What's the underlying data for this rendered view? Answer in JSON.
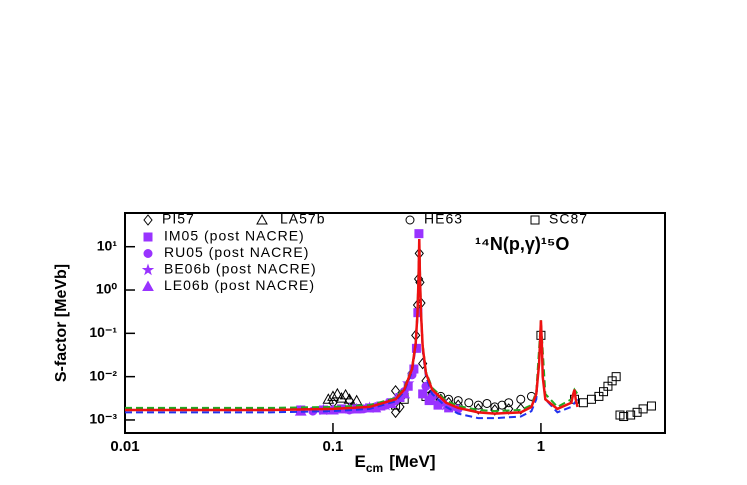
{
  "chart_data": {
    "type": "scatter",
    "annotation": "¹⁴N(p,γ)¹⁵O",
    "ylabel": "S-factor [MeVb]",
    "xlabel": "E",
    "xlabel_sub": "cm",
    "xlabel_unit": "[MeV]",
    "xscale": "log",
    "yscale": "log",
    "xlim": [
      0.01,
      3.95
    ],
    "ylim": [
      0.0005,
      60
    ],
    "xticks": [
      0.01,
      0.1,
      1
    ],
    "yticks": [
      {
        "value": 0.001,
        "label": "10⁻³"
      },
      {
        "value": 0.01,
        "label": "10⁻²"
      },
      {
        "value": 0.1,
        "label": "10⁻¹"
      },
      {
        "value": 1,
        "label": "10⁰"
      },
      {
        "value": 10,
        "label": "10¹"
      }
    ],
    "series": [
      {
        "name": "PI57",
        "marker": "diamond",
        "filled": false,
        "color": "#000000",
        "x": [
          0.1,
          0.12,
          0.2,
          0.2,
          0.21,
          0.22,
          0.24,
          0.25,
          0.255,
          0.258,
          0.26,
          0.262,
          0.265,
          0.27,
          0.28,
          0.3,
          0.33,
          0.36,
          0.4,
          0.5,
          0.6,
          0.7,
          0.8
        ],
        "values": [
          0.0025,
          0.0028,
          0.0015,
          0.0047,
          0.002,
          0.004,
          0.012,
          0.09,
          0.45,
          1.8,
          7,
          1.5,
          0.5,
          0.02,
          0.008,
          0.004,
          0.003,
          0.0025,
          0.0022,
          0.0018,
          0.0017,
          0.0018,
          0.0018
        ]
      },
      {
        "name": "LA57b",
        "marker": "triangle",
        "filled": false,
        "color": "#000000",
        "x": [
          0.095,
          0.1,
          0.105,
          0.11,
          0.115,
          0.12,
          0.13
        ],
        "values": [
          0.003,
          0.0035,
          0.004,
          0.0032,
          0.0038,
          0.003,
          0.0028
        ]
      },
      {
        "name": "HE63",
        "marker": "circle",
        "filled": false,
        "color": "#000000",
        "x": [
          0.3,
          0.33,
          0.36,
          0.4,
          0.45,
          0.5,
          0.55,
          0.6,
          0.65,
          0.7,
          0.8,
          0.9
        ],
        "values": [
          0.004,
          0.0035,
          0.003,
          0.0028,
          0.0025,
          0.0022,
          0.0024,
          0.002,
          0.0022,
          0.0025,
          0.003,
          0.0035
        ]
      },
      {
        "name": "SC87",
        "marker": "square",
        "filled": false,
        "color": "#000000",
        "x": [
          0.2,
          0.22,
          0.28,
          0.3,
          1.0,
          1.45,
          1.6,
          1.75,
          1.9,
          2.0,
          2.1,
          2.2,
          2.3,
          2.4,
          2.5,
          2.7,
          2.9,
          3.1,
          3.4
        ],
        "values": [
          0.0022,
          0.003,
          0.0035,
          0.003,
          0.09,
          0.003,
          0.0025,
          0.003,
          0.0035,
          0.0045,
          0.006,
          0.008,
          0.01,
          0.0013,
          0.0012,
          0.0013,
          0.0015,
          0.0018,
          0.0021
        ]
      },
      {
        "name": "IM05 (post NACRE)",
        "marker": "square",
        "filled": true,
        "color": "#9933ff",
        "x": [
          0.07,
          0.09,
          0.11,
          0.13,
          0.15,
          0.17,
          0.19,
          0.21,
          0.23,
          0.245,
          0.252,
          0.256,
          0.259,
          0.27,
          0.29,
          0.32,
          0.36
        ],
        "values": [
          0.0017,
          0.0017,
          0.0018,
          0.0018,
          0.0019,
          0.0021,
          0.0025,
          0.0033,
          0.006,
          0.015,
          0.045,
          0.3,
          20,
          0.004,
          0.0028,
          0.0022,
          0.0019
        ]
      },
      {
        "name": "RU05 (post NACRE)",
        "marker": "circle",
        "filled": true,
        "color": "#9933ff",
        "x": [
          0.08,
          0.1,
          0.12,
          0.14,
          0.16,
          0.18,
          0.2,
          0.22,
          0.24,
          0.28,
          0.3,
          0.33,
          0.37,
          0.4
        ],
        "values": [
          0.0016,
          0.0017,
          0.0017,
          0.0018,
          0.002,
          0.0022,
          0.0028,
          0.0045,
          0.011,
          0.006,
          0.0035,
          0.0025,
          0.002,
          0.0018
        ]
      },
      {
        "name": "BE06b (post NACRE)",
        "marker": "star",
        "filled": true,
        "color": "#9933ff",
        "x": [
          0.09,
          0.12,
          0.15,
          0.18,
          0.21,
          0.23,
          0.3,
          0.35
        ],
        "values": [
          0.0017,
          0.0018,
          0.0019,
          0.0022,
          0.0035,
          0.007,
          0.003,
          0.0022
        ]
      },
      {
        "name": "LE06b (post NACRE)",
        "marker": "triangle",
        "filled": true,
        "color": "#9933ff",
        "x": [
          0.07,
          0.1,
          0.13,
          0.16,
          0.19,
          0.22
        ],
        "values": [
          0.0016,
          0.0017,
          0.0018,
          0.0019,
          0.0024,
          0.004
        ]
      },
      {
        "line": "dash",
        "color": "#000000",
        "x": [
          0.01,
          0.05,
          0.1,
          0.15,
          0.2,
          0.22,
          0.24
        ],
        "values": [
          0.0018,
          0.0018,
          0.0019,
          0.0021,
          0.0031,
          0.0052,
          0.015
        ]
      },
      {
        "line": "dash",
        "color": "#2233ee",
        "x": [
          0.01,
          0.05,
          0.1,
          0.15,
          0.2,
          0.22,
          0.24,
          0.25,
          0.255,
          0.26,
          0.265,
          0.27,
          0.28,
          0.3,
          0.35,
          0.4,
          0.5,
          0.6,
          0.8,
          0.9,
          0.95,
          1.0,
          1.05,
          1.2,
          1.4,
          1.5
        ],
        "values": [
          0.0015,
          0.0015,
          0.0016,
          0.0018,
          0.0027,
          0.0045,
          0.013,
          0.05,
          0.25,
          12,
          0.25,
          0.04,
          0.01,
          0.004,
          0.002,
          0.0014,
          0.0011,
          0.0011,
          0.0012,
          0.0016,
          0.003,
          0.15,
          0.003,
          0.0015,
          0.002,
          0.003
        ]
      },
      {
        "line": "dash",
        "color": "#22aa22",
        "x": [
          0.01,
          0.05,
          0.1,
          0.15,
          0.2,
          0.22,
          0.24,
          0.25,
          0.255,
          0.26,
          0.265,
          0.27,
          0.28,
          0.3,
          0.35,
          0.4,
          0.5,
          0.6,
          0.8,
          0.9,
          0.95,
          1.0,
          1.05,
          1.2,
          1.4,
          1.45,
          1.5
        ],
        "values": [
          0.0019,
          0.0019,
          0.002,
          0.0022,
          0.0032,
          0.0055,
          0.016,
          0.065,
          0.35,
          14,
          0.35,
          0.055,
          0.013,
          0.0055,
          0.0028,
          0.0021,
          0.0017,
          0.0016,
          0.0017,
          0.0022,
          0.0045,
          0.2,
          0.004,
          0.002,
          0.003,
          0.005,
          0.004
        ]
      },
      {
        "line": "solid",
        "color": "#ee1111",
        "x": [
          0.01,
          0.05,
          0.1,
          0.15,
          0.2,
          0.22,
          0.24,
          0.25,
          0.255,
          0.258,
          0.26,
          0.262,
          0.265,
          0.27,
          0.28,
          0.3,
          0.35,
          0.4,
          0.5,
          0.6,
          0.8,
          0.9,
          0.95,
          0.98,
          0.99,
          1.0,
          1.01,
          1.02,
          1.05,
          1.2,
          1.4,
          1.43,
          1.45,
          1.47,
          1.5
        ],
        "values": [
          0.0017,
          0.0017,
          0.0018,
          0.002,
          0.003,
          0.005,
          0.015,
          0.06,
          0.3,
          2,
          15,
          2,
          0.3,
          0.05,
          0.012,
          0.005,
          0.0025,
          0.0019,
          0.0015,
          0.0014,
          0.0015,
          0.002,
          0.004,
          0.02,
          0.06,
          0.2,
          0.06,
          0.01,
          0.003,
          0.0018,
          0.0025,
          0.004,
          0.005,
          0.003,
          0.002
        ]
      }
    ]
  }
}
